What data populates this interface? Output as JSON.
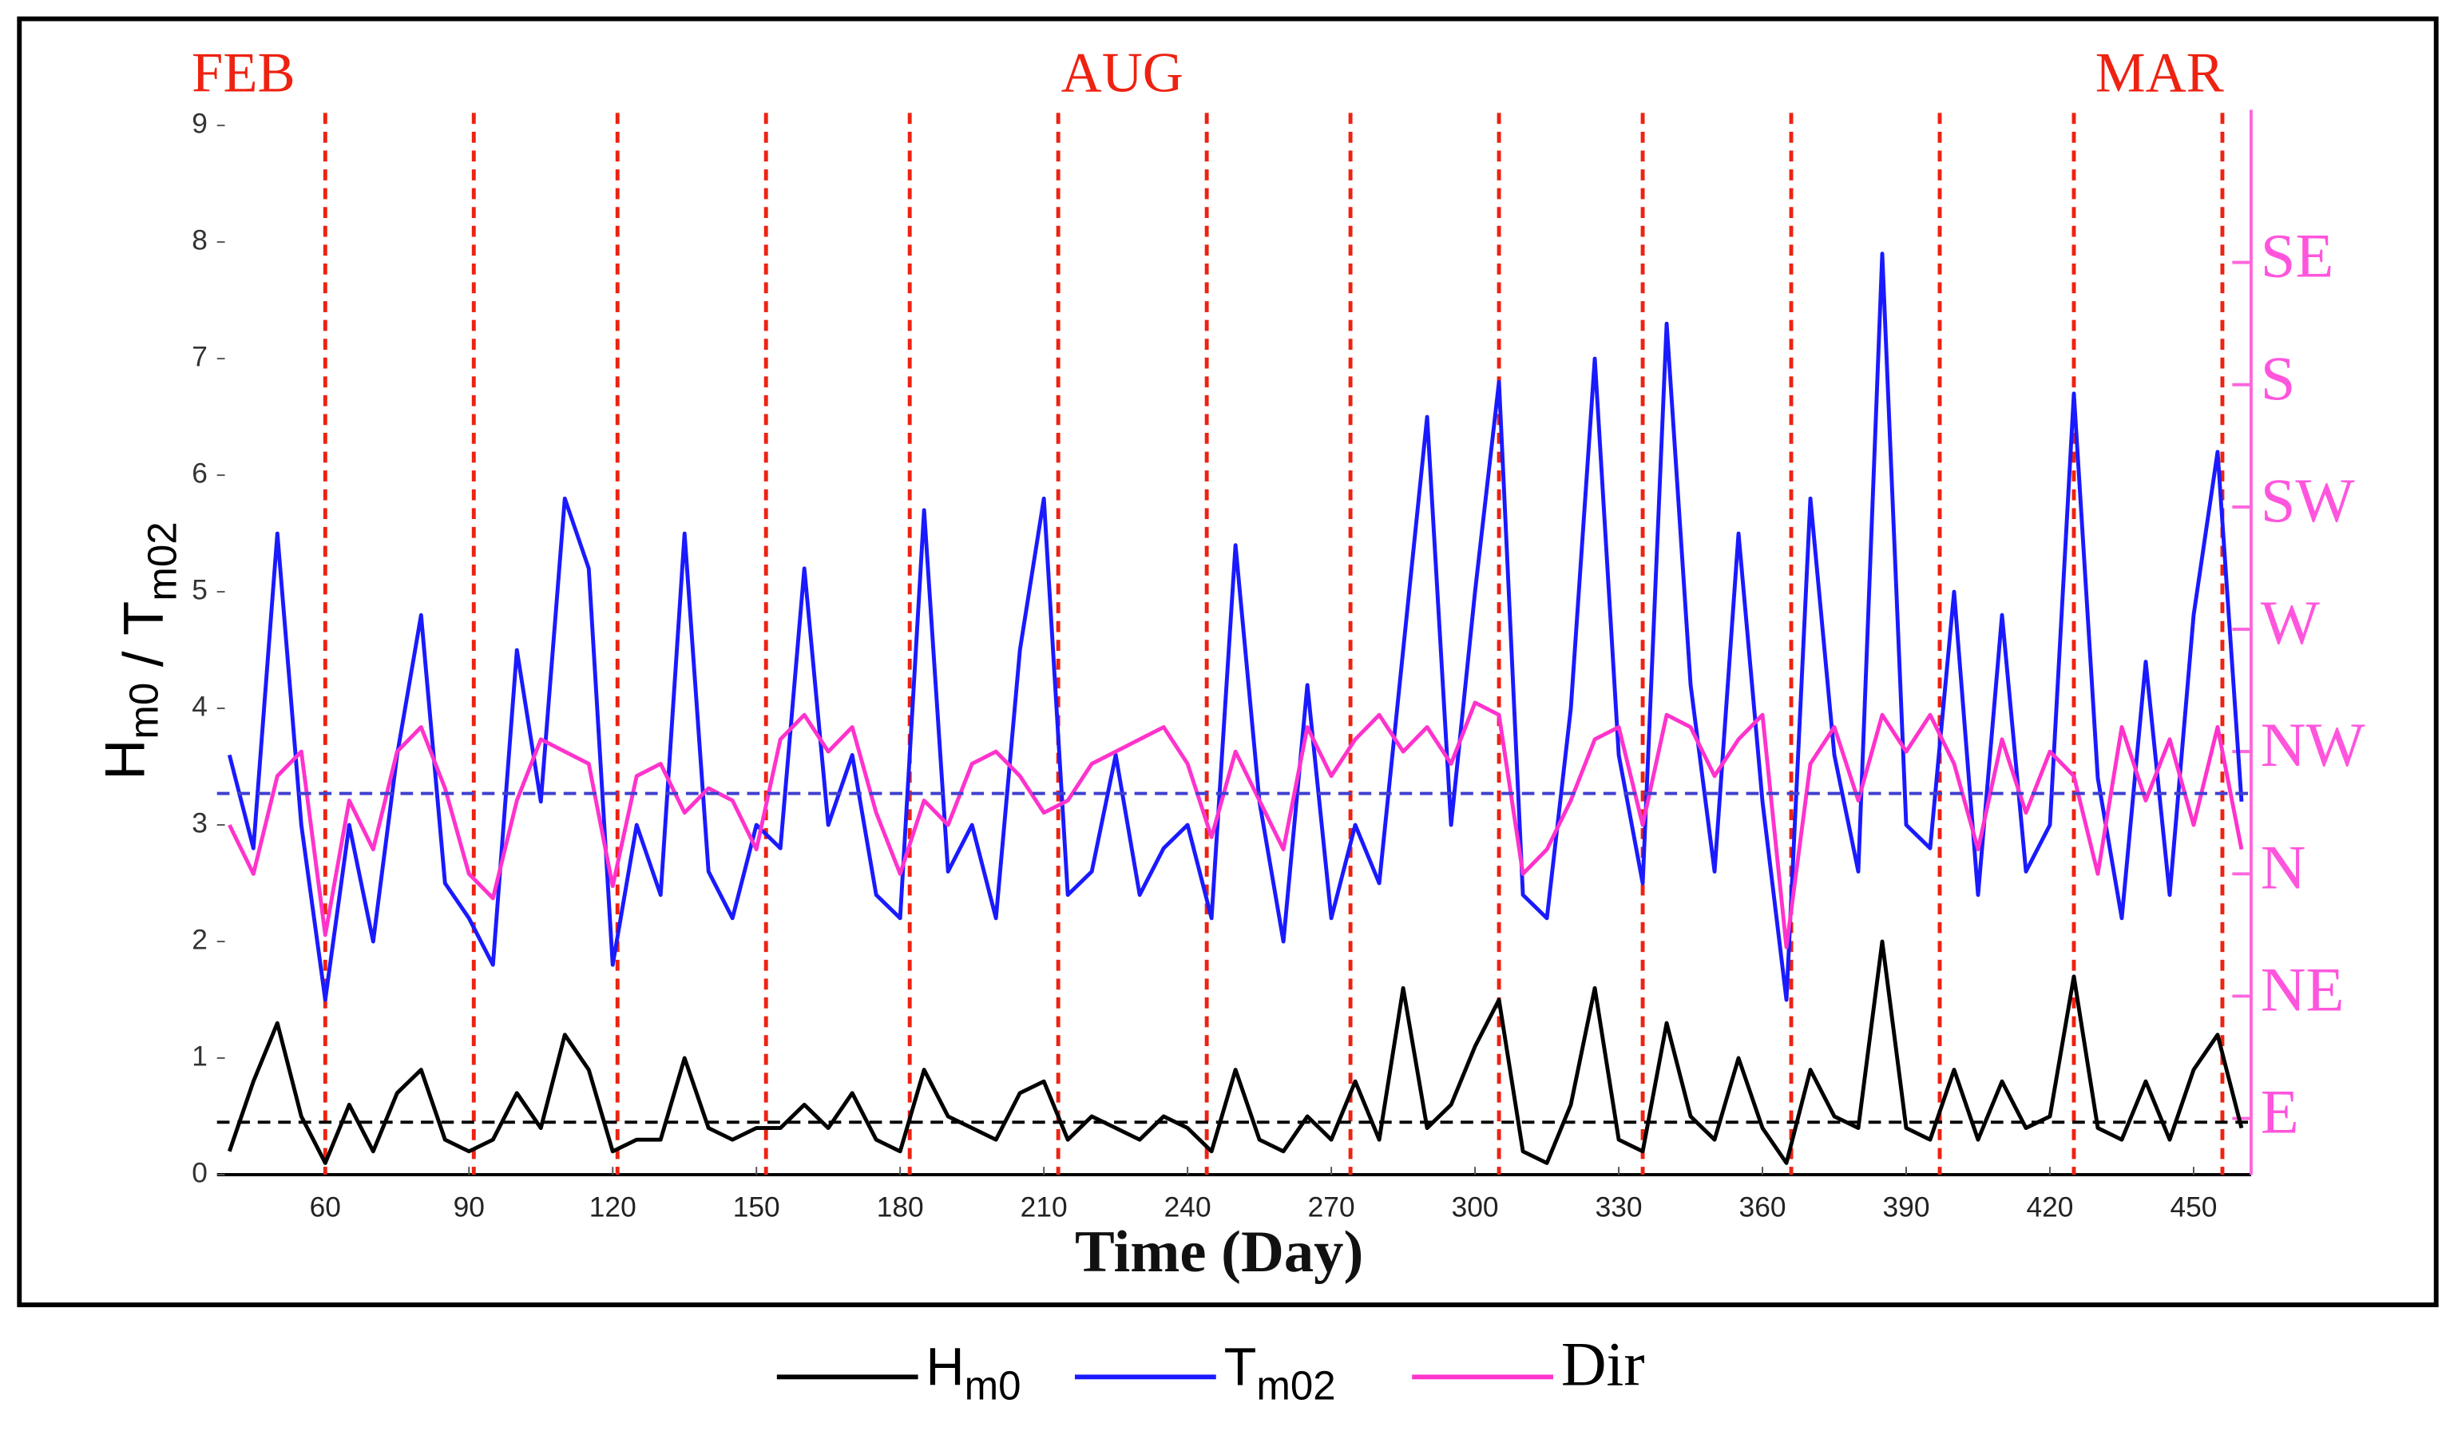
{
  "chart_data": {
    "type": "line",
    "xlabel": "Time (Day)",
    "ylabel": "Hm0 / Tm02",
    "annotations": [
      "FEB",
      "AUG",
      "MAR"
    ],
    "x": [
      40,
      45,
      50,
      55,
      60,
      65,
      70,
      75,
      80,
      85,
      90,
      95,
      100,
      105,
      110,
      115,
      120,
      125,
      130,
      135,
      140,
      145,
      150,
      155,
      160,
      165,
      170,
      175,
      180,
      185,
      190,
      195,
      200,
      205,
      210,
      215,
      220,
      225,
      230,
      235,
      240,
      245,
      250,
      255,
      260,
      265,
      270,
      275,
      280,
      285,
      290,
      295,
      300,
      305,
      310,
      315,
      320,
      325,
      330,
      335,
      340,
      345,
      350,
      355,
      360,
      365,
      370,
      375,
      380,
      385,
      390,
      395,
      400,
      405,
      410,
      415,
      420,
      425,
      430,
      435,
      440,
      445,
      450,
      455,
      460
    ],
    "series": [
      {
        "name": "Hm0",
        "color": "#000000",
        "values": [
          0.2,
          0.8,
          1.3,
          0.5,
          0.1,
          0.6,
          0.2,
          0.7,
          0.9,
          0.3,
          0.2,
          0.3,
          0.7,
          0.4,
          1.2,
          0.9,
          0.2,
          0.3,
          0.3,
          1.0,
          0.4,
          0.3,
          0.4,
          0.4,
          0.6,
          0.4,
          0.7,
          0.3,
          0.2,
          0.9,
          0.5,
          0.4,
          0.3,
          0.7,
          0.8,
          0.3,
          0.5,
          0.4,
          0.3,
          0.5,
          0.4,
          0.2,
          0.9,
          0.3,
          0.2,
          0.5,
          0.3,
          0.8,
          0.3,
          1.6,
          0.4,
          0.6,
          1.1,
          1.5,
          0.2,
          0.1,
          0.6,
          1.6,
          0.3,
          0.2,
          1.3,
          0.5,
          0.3,
          1.0,
          0.4,
          0.1,
          0.9,
          0.5,
          0.4,
          2.0,
          0.4,
          0.3,
          0.9,
          0.3,
          0.8,
          0.4,
          0.5,
          1.7,
          0.4,
          0.3,
          0.8,
          0.3,
          0.9,
          1.2,
          0.4
        ]
      },
      {
        "name": "Tm02",
        "color": "#1a1aff",
        "values": [
          3.6,
          2.8,
          5.5,
          3.0,
          1.5,
          3.0,
          2.0,
          3.6,
          4.8,
          2.5,
          2.2,
          1.8,
          4.5,
          3.2,
          5.8,
          5.2,
          1.8,
          3.0,
          2.4,
          5.5,
          2.6,
          2.2,
          3.0,
          2.8,
          5.2,
          3.0,
          3.6,
          2.4,
          2.2,
          5.7,
          2.6,
          3.0,
          2.2,
          4.5,
          5.8,
          2.4,
          2.6,
          3.6,
          2.4,
          2.8,
          3.0,
          2.2,
          5.4,
          3.2,
          2.0,
          4.2,
          2.2,
          3.0,
          2.5,
          4.5,
          6.5,
          3.0,
          5.0,
          6.8,
          2.4,
          2.2,
          4.0,
          7.0,
          3.6,
          2.5,
          7.3,
          4.2,
          2.6,
          5.5,
          3.2,
          1.5,
          5.8,
          3.6,
          2.6,
          7.9,
          3.0,
          2.8,
          5.0,
          2.4,
          4.8,
          2.6,
          3.0,
          6.7,
          3.4,
          2.2,
          4.4,
          2.4,
          4.8,
          6.2,
          3.2
        ]
      },
      {
        "name": "Dir",
        "color": "#ff33cc",
        "axis": "y2",
        "values": [
          2.4,
          2.0,
          2.8,
          3.0,
          1.5,
          2.6,
          2.2,
          3.0,
          3.2,
          2.7,
          2.0,
          1.8,
          2.6,
          3.1,
          3.0,
          2.9,
          1.9,
          2.8,
          2.9,
          2.5,
          2.7,
          2.6,
          2.2,
          3.1,
          3.3,
          3.0,
          3.2,
          2.5,
          2.0,
          2.6,
          2.4,
          2.9,
          3.0,
          2.8,
          2.5,
          2.6,
          2.9,
          3.0,
          3.1,
          3.2,
          2.9,
          2.3,
          3.0,
          2.6,
          2.2,
          3.2,
          2.8,
          3.1,
          3.3,
          3.0,
          3.2,
          2.9,
          3.4,
          3.3,
          2.0,
          2.2,
          2.6,
          3.1,
          3.2,
          2.4,
          3.3,
          3.2,
          2.8,
          3.1,
          3.3,
          1.4,
          2.9,
          3.2,
          2.6,
          3.3,
          3.0,
          3.3,
          2.9,
          2.2,
          3.1,
          2.5,
          3.0,
          2.8,
          2.0,
          3.2,
          2.6,
          3.1,
          2.4,
          3.2,
          2.2
        ]
      }
    ],
    "reference_lines": [
      {
        "value": 3.27,
        "color": "#4040d0"
      },
      {
        "value": 0.45,
        "color": "#000000"
      }
    ],
    "month_lines": [
      60,
      91,
      121,
      152,
      182,
      213,
      244,
      274,
      305,
      335,
      366,
      397,
      425,
      456
    ],
    "month_line_color": "#ee2211",
    "xlim": [
      37.4,
      462
    ],
    "xticks": [
      60,
      90,
      120,
      150,
      180,
      210,
      240,
      270,
      300,
      330,
      360,
      390,
      420,
      450
    ],
    "ylim": [
      0,
      9
    ],
    "yticks": [
      0,
      1,
      2,
      3,
      4,
      5,
      6,
      7,
      8,
      9
    ],
    "y2lim": [
      -0.46,
      8.12
    ],
    "y2ticks": [
      {
        "value": 0,
        "label": "E"
      },
      {
        "value": 1,
        "label": "NE"
      },
      {
        "value": 2,
        "label": "N"
      },
      {
        "value": 3,
        "label": "NW"
      },
      {
        "value": 4,
        "label": "W"
      },
      {
        "value": 5,
        "label": "SW"
      },
      {
        "value": 6,
        "label": "S"
      },
      {
        "value": 7,
        "label": "SE"
      }
    ],
    "legend": "bottom"
  }
}
